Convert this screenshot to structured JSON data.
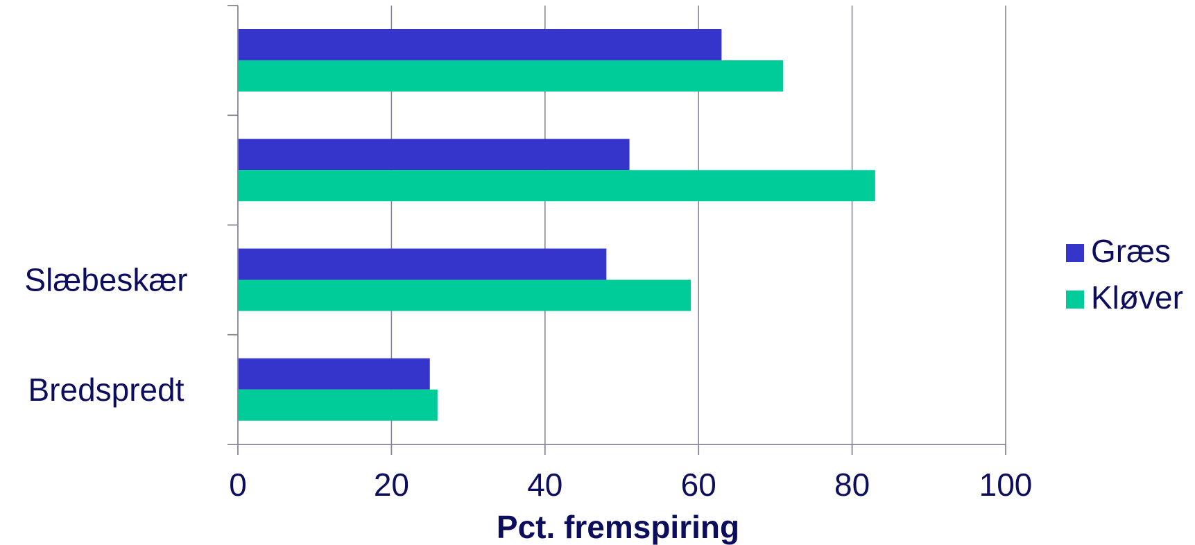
{
  "chart_data": {
    "type": "bar",
    "orientation": "horizontal",
    "categories": [
      "",
      "",
      "Slæbeskær",
      "Bredspredt"
    ],
    "series": [
      {
        "name": "Græs",
        "values": [
          63,
          51,
          48,
          25
        ],
        "color": "#3535cc"
      },
      {
        "name": "Kløver",
        "values": [
          71,
          83,
          59,
          26
        ],
        "color": "#00cc99"
      }
    ],
    "xlabel": "Pct. fremspiring",
    "xlim": [
      0,
      100
    ],
    "xticks": [
      0,
      20,
      40,
      60,
      80,
      100
    ],
    "grid": "vertical",
    "legend": "right",
    "colors": {
      "text": "#0d0d5e",
      "axis": "#868696"
    }
  }
}
